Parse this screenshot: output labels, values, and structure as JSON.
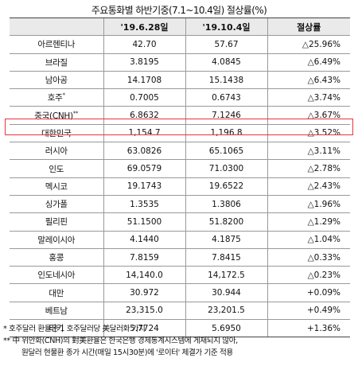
{
  "title": "주요통화별 하반기중(7.1~10.4일) 절상률(%)",
  "headers": [
    "",
    "'19.6.28일",
    "'19.10.4일",
    "절상률"
  ],
  "rows": [
    {
      "name": "아르헨티나",
      "sup": "",
      "v1": "42.70",
      "v2": "57.67",
      "pct": "△25.96%"
    },
    {
      "name": "브라질",
      "sup": "",
      "v1": "3.8195",
      "v2": "4.0845",
      "pct": "△6.49%"
    },
    {
      "name": "남아공",
      "sup": "",
      "v1": "14.1708",
      "v2": "15.1438",
      "pct": "△6.43%"
    },
    {
      "name": "호주",
      "sup": "*",
      "v1": "0.7005",
      "v2": "0.6743",
      "pct": "△3.74%"
    },
    {
      "name": "중국(CNH)",
      "sup": "**",
      "v1": "6.8632",
      "v2": "7.1246",
      "pct": "△3.67%"
    },
    {
      "name": "대한민국",
      "sup": "",
      "v1": "1,154.7",
      "v2": "1,196.8",
      "pct": "△3.52%"
    },
    {
      "name": "러시아",
      "sup": "",
      "v1": "63.0826",
      "v2": "65.1065",
      "pct": "△3.11%"
    },
    {
      "name": "인도",
      "sup": "",
      "v1": "69.0579",
      "v2": "71.0300",
      "pct": "△2.78%"
    },
    {
      "name": "멕시코",
      "sup": "",
      "v1": "19.1743",
      "v2": "19.6522",
      "pct": "△2.43%"
    },
    {
      "name": "싱가폴",
      "sup": "",
      "v1": "1.3535",
      "v2": "1.3806",
      "pct": "△1.96%"
    },
    {
      "name": "필리핀",
      "sup": "",
      "v1": "51.1500",
      "v2": "51.8200",
      "pct": "△1.29%"
    },
    {
      "name": "말레이시아",
      "sup": "",
      "v1": "4.1440",
      "v2": "4.1875",
      "pct": "△1.04%"
    },
    {
      "name": "홍콩",
      "sup": "",
      "v1": "7.8159",
      "v2": "7.8415",
      "pct": "△0.33%"
    },
    {
      "name": "인도네시아",
      "sup": "",
      "v1": "14,140.0",
      "v2": "14,172.5",
      "pct": "△0.23%"
    },
    {
      "name": "대만",
      "sup": "",
      "v1": "30.972",
      "v2": "30.944",
      "pct": "+0.09%"
    },
    {
      "name": "베트남",
      "sup": "",
      "v1": "23,315.0",
      "v2": "23,201.5",
      "pct": "+0.49%"
    },
    {
      "name": "터키",
      "sup": "",
      "v1": "5.7724",
      "v2": "5.6950",
      "pct": "+1.36%"
    }
  ],
  "notes": [
    " * 호주달러 환율은 1 호주달러당 美달러화 가치",
    "** 中 위안화(CNH)의 對美환율은 한국은행 경제통계시스템에 게재되지 않아,",
    "원달러 현물환 종가 시간(매일 15시30분)에 '로이터' 체결가 기준 적용"
  ],
  "highlight_color": "#e8343d"
}
